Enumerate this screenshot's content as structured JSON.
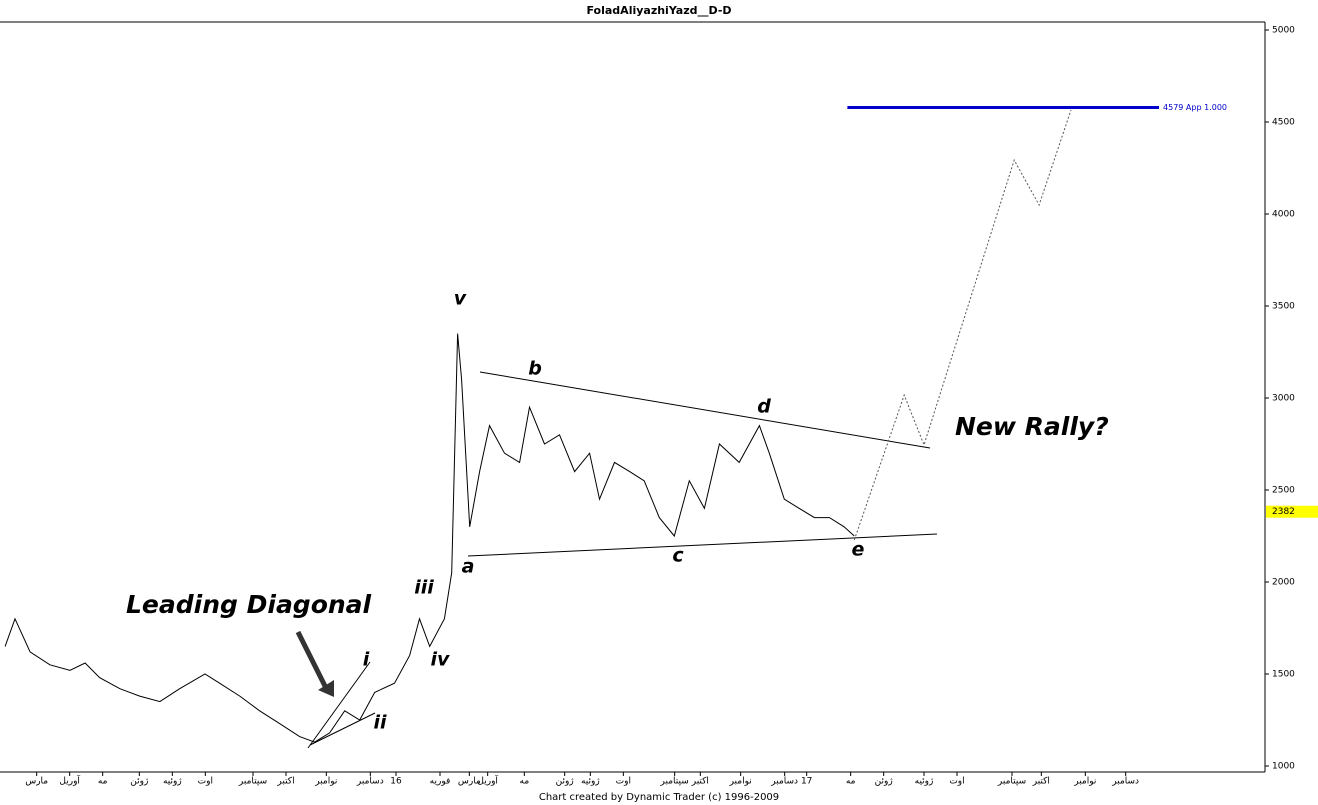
{
  "chart_data": {
    "type": "line",
    "title": "FoladAliyazhiYazd__D-D",
    "footer": "Chart created by Dynamic Trader  (c) 1996-2009",
    "x": [
      -0.56,
      -0.29,
      0.12,
      0.66,
      1.21,
      1.62,
      2.02,
      2.57,
      3.11,
      3.66,
      4.2,
      4.89,
      5.29,
      5.84,
      6.38,
      6.93,
      7.47,
      7.88,
      8.29,
      8.7,
      9.11,
      9.52,
      10.06,
      10.47,
      10.74,
      11.02,
      11.42,
      11.62,
      11.78,
      11.89,
      12.11,
      12.38,
      12.65,
      13.06,
      13.47,
      13.74,
      14.15,
      14.56,
      14.97,
      15.38,
      15.65,
      16.06,
      16.47,
      16.87,
      17.28,
      17.69,
      18.1,
      18.51,
      18.92,
      19.46,
      20.01,
      20.28,
      20.69,
      21.1,
      21.51,
      21.92,
      22.32,
      22.6
    ],
    "series": [
      {
        "color": "#000000",
        "values": [
          1650,
          1800,
          1620,
          1550,
          1520,
          1560,
          1480,
          1420,
          1380,
          1350,
          1420,
          1500,
          1450,
          1380,
          1300,
          1230,
          1160,
          1130,
          1180,
          1300,
          1250,
          1400,
          1450,
          1600,
          1800,
          1650,
          1800,
          2050,
          3350,
          3100,
          2300,
          2600,
          2850,
          2700,
          2650,
          2950,
          2750,
          2800,
          2600,
          2700,
          2450,
          2650,
          2600,
          2550,
          2350,
          2250,
          2550,
          2400,
          2750,
          2650,
          2850,
          2700,
          2450,
          2400,
          2350,
          2350,
          2300,
          2250
        ]
      }
    ],
    "projection": {
      "color": "#555555",
      "x": [
        22.6,
        23.96,
        24.5,
        26.96,
        27.64,
        28.51
      ],
      "values": [
        2228,
        3016,
        2745,
        4293,
        4049,
        4565
      ]
    },
    "target": {
      "value": 4579,
      "label": "4579 App 1.000",
      "color": "#0000cc",
      "x": [
        22.41,
        30.91
      ]
    },
    "last_price": 2382,
    "xlim": [
      -0.7,
      33.8
    ],
    "ylim": [
      1000,
      5000
    ],
    "yticks": [
      1000,
      1500,
      2000,
      2500,
      3000,
      3500,
      4000,
      4500,
      5000
    ],
    "xticks": [
      {
        "value": 0.3,
        "label": "مارس"
      },
      {
        "value": 1.2,
        "label": "آوریل"
      },
      {
        "value": 2.1,
        "label": "مه"
      },
      {
        "value": 3.1,
        "label": "ژوئن"
      },
      {
        "value": 4.0,
        "label": "ژوئیه"
      },
      {
        "value": 4.9,
        "label": "اوت"
      },
      {
        "value": 6.2,
        "label": "سپتامبر"
      },
      {
        "value": 7.1,
        "label": "اکتبر"
      },
      {
        "value": 8.2,
        "label": "نوامبر"
      },
      {
        "value": 9.4,
        "label": "دسامبر"
      },
      {
        "value": 10.1,
        "label": "16"
      },
      {
        "value": 11.3,
        "label": "فوریه"
      },
      {
        "value": 12.1,
        "label": "مارس"
      },
      {
        "value": 12.6,
        "label": "آوریل"
      },
      {
        "value": 13.6,
        "label": "مه"
      },
      {
        "value": 14.7,
        "label": "ژوئن"
      },
      {
        "value": 15.4,
        "label": "ژوئیه"
      },
      {
        "value": 16.3,
        "label": "اوت"
      },
      {
        "value": 17.7,
        "label": "سپتامبر"
      },
      {
        "value": 18.4,
        "label": "اکتبر"
      },
      {
        "value": 19.5,
        "label": "نوامبر"
      },
      {
        "value": 20.7,
        "label": "دسامبر"
      },
      {
        "value": 21.3,
        "label": "17"
      },
      {
        "value": 22.5,
        "label": "مه"
      },
      {
        "value": 23.4,
        "label": "ژوئن"
      },
      {
        "value": 24.5,
        "label": "ژوئیه"
      },
      {
        "value": 25.4,
        "label": "اوت"
      },
      {
        "value": 26.9,
        "label": "سپتامبر"
      },
      {
        "value": 27.7,
        "label": "اکتبر"
      },
      {
        "value": 28.9,
        "label": "نوامبر"
      },
      {
        "value": 30.0,
        "label": "دسامبر"
      }
    ]
  },
  "annotations": [
    "Leading Diagonal",
    "New Rally?"
  ],
  "wave_labels": [
    "v",
    "b",
    "d",
    "a",
    "c",
    "e",
    "iii",
    "iv",
    "i",
    "ii"
  ]
}
